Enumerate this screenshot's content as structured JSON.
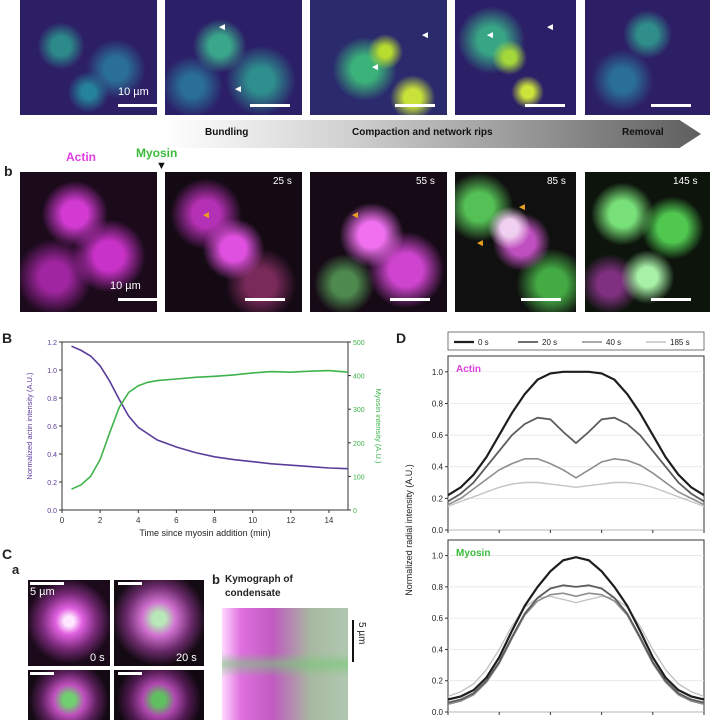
{
  "panel_a": {
    "scalebar_label": "10 µm",
    "stages": [
      "Bundling",
      "Compaction and network rips",
      "Removal"
    ]
  },
  "panel_b": {
    "letter": "b",
    "actin_label": "Actin",
    "myosin_label": "Myosin",
    "times": [
      "25 s",
      "55 s",
      "85 s",
      "145 s"
    ],
    "scalebar_label": "10 µm"
  },
  "panel_B": {
    "letter": "B"
  },
  "panel_C": {
    "letter": "C",
    "sub_a": "a",
    "sub_b": "b",
    "scalebar_label": "5 µm",
    "times": [
      "0 s",
      "20 s"
    ],
    "kymo_title_line1": "Kymograph of",
    "kymo_title_line2": "condensate",
    "kymo_scale": "5 µm"
  },
  "panel_D": {
    "letter": "D"
  },
  "colors": {
    "actin": "#e040e0",
    "myosin": "#3dbb3d",
    "purple_line": "#5a3d9a",
    "green_line": "#3fb34a"
  },
  "chart_data": [
    {
      "type": "line",
      "xlabel": "Time since myosin addition (min)",
      "ylabel": "Normalized actin intensity (A.U.)",
      "ylabel_right": "Myosin intensity (A.U.)",
      "xlim": [
        0,
        15
      ],
      "ylim": [
        0,
        1.2
      ],
      "ylim_right": [
        0,
        500
      ],
      "xticks": [
        "0",
        "2",
        "4",
        "6",
        "8",
        "10",
        "12",
        "14"
      ],
      "yticks": [
        "0.0",
        "0.2",
        "0.4",
        "0.6",
        "0.8",
        "1.0",
        "1.2"
      ],
      "yticks_right": [
        "0",
        "100",
        "200",
        "300",
        "400",
        "500"
      ],
      "series": [
        {
          "axis": "left",
          "color": "#5a3d9a",
          "x": [
            0.5,
            1,
            1.5,
            2,
            2.5,
            3,
            3.5,
            4,
            5,
            6,
            7,
            8,
            9,
            10,
            11,
            12,
            13,
            14,
            15
          ],
          "values": [
            1.17,
            1.14,
            1.1,
            1.03,
            0.92,
            0.79,
            0.67,
            0.59,
            0.5,
            0.45,
            0.41,
            0.38,
            0.36,
            0.345,
            0.33,
            0.32,
            0.31,
            0.3,
            0.295
          ]
        },
        {
          "axis": "right",
          "color": "#3fb34a",
          "x": [
            0.5,
            1,
            1.5,
            2,
            2.5,
            3,
            3.5,
            4,
            4.5,
            5,
            6,
            7,
            8,
            9,
            10,
            11,
            12,
            13,
            14,
            15
          ],
          "values": [
            62,
            75,
            100,
            150,
            230,
            305,
            350,
            370,
            380,
            385,
            390,
            395,
            398,
            402,
            408,
            412,
            410,
            413,
            415,
            410
          ]
        }
      ]
    },
    {
      "type": "line",
      "ylabel": "Normalized radial intensity (A.U.)",
      "legend": [
        "0 s",
        "20 s",
        "40 s",
        "185 s"
      ],
      "legend_position": "top",
      "subplots": [
        {
          "label": "Actin",
          "ylim": [
            0,
            1.1
          ],
          "yticks": [
            "0.0",
            "0.2",
            "0.4",
            "0.6",
            "0.8",
            "1.0"
          ],
          "x": [
            0,
            1,
            2,
            3,
            4,
            5,
            6,
            7,
            8,
            9,
            10,
            11,
            12,
            13,
            14,
            15,
            16,
            17,
            18,
            19,
            20
          ],
          "series": [
            {
              "name": "0 s",
              "values": [
                0.22,
                0.27,
                0.35,
                0.46,
                0.6,
                0.74,
                0.86,
                0.95,
                0.99,
                1.0,
                1.0,
                1.0,
                0.99,
                0.95,
                0.86,
                0.74,
                0.6,
                0.46,
                0.35,
                0.27,
                0.22
              ]
            },
            {
              "name": "20 s",
              "values": [
                0.18,
                0.23,
                0.3,
                0.4,
                0.5,
                0.6,
                0.67,
                0.71,
                0.7,
                0.62,
                0.55,
                0.62,
                0.7,
                0.71,
                0.67,
                0.6,
                0.5,
                0.4,
                0.3,
                0.23,
                0.18
              ]
            },
            {
              "name": "40 s",
              "values": [
                0.16,
                0.2,
                0.26,
                0.32,
                0.38,
                0.42,
                0.45,
                0.45,
                0.42,
                0.38,
                0.33,
                0.38,
                0.43,
                0.45,
                0.44,
                0.41,
                0.36,
                0.3,
                0.24,
                0.2,
                0.16
              ]
            },
            {
              "name": "185 s",
              "values": [
                0.15,
                0.18,
                0.21,
                0.24,
                0.27,
                0.29,
                0.3,
                0.3,
                0.29,
                0.28,
                0.27,
                0.28,
                0.29,
                0.3,
                0.3,
                0.29,
                0.27,
                0.24,
                0.21,
                0.18,
                0.15
              ]
            }
          ]
        },
        {
          "label": "Myosin",
          "ylim": [
            0,
            1.1
          ],
          "yticks": [
            "0.0",
            "0.2",
            "0.4",
            "0.6",
            "0.8",
            "1.0"
          ],
          "x": [
            0,
            1,
            2,
            3,
            4,
            5,
            6,
            7,
            8,
            9,
            10,
            11,
            12,
            13,
            14,
            15,
            16,
            17,
            18,
            19,
            20
          ],
          "series": [
            {
              "name": "0 s",
              "values": [
                0.08,
                0.1,
                0.14,
                0.22,
                0.35,
                0.52,
                0.68,
                0.8,
                0.9,
                0.97,
                0.99,
                0.97,
                0.9,
                0.8,
                0.68,
                0.52,
                0.35,
                0.22,
                0.14,
                0.1,
                0.08
              ]
            },
            {
              "name": "20 s",
              "values": [
                0.06,
                0.08,
                0.12,
                0.2,
                0.32,
                0.48,
                0.63,
                0.73,
                0.79,
                0.81,
                0.8,
                0.81,
                0.79,
                0.73,
                0.63,
                0.48,
                0.32,
                0.2,
                0.12,
                0.08,
                0.06
              ]
            },
            {
              "name": "40 s",
              "values": [
                0.05,
                0.07,
                0.11,
                0.19,
                0.31,
                0.47,
                0.62,
                0.71,
                0.75,
                0.76,
                0.74,
                0.76,
                0.75,
                0.71,
                0.62,
                0.47,
                0.31,
                0.19,
                0.11,
                0.07,
                0.05
              ]
            },
            {
              "name": "185 s",
              "values": [
                0.1,
                0.13,
                0.18,
                0.27,
                0.4,
                0.55,
                0.67,
                0.73,
                0.74,
                0.72,
                0.7,
                0.72,
                0.74,
                0.73,
                0.67,
                0.55,
                0.4,
                0.27,
                0.18,
                0.13,
                0.1
              ]
            }
          ]
        }
      ]
    }
  ]
}
